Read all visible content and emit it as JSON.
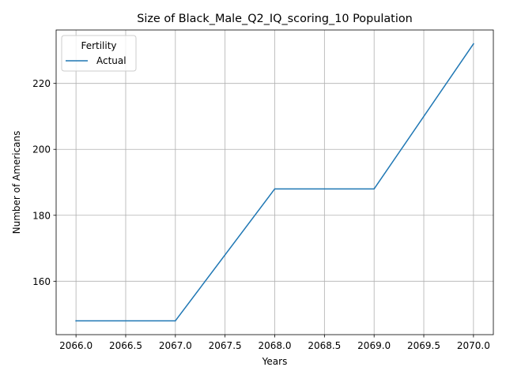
{
  "chart_data": {
    "type": "line",
    "title": "Size of Black_Male_Q2_IQ_scoring_10 Population",
    "xlabel": "Years",
    "ylabel": "Number of Americans",
    "x": [
      2066,
      2067,
      2068,
      2069,
      2070
    ],
    "series": [
      {
        "name": "Actual",
        "color": "#1f77b4",
        "values": [
          148,
          148,
          188,
          188,
          232
        ]
      }
    ],
    "xlim": [
      2065.8,
      2070.2
    ],
    "ylim": [
      143.8,
      236.2
    ],
    "xticks": [
      "2066.0",
      "2066.5",
      "2067.0",
      "2067.5",
      "2068.0",
      "2068.5",
      "2069.0",
      "2069.5",
      "2070.0"
    ],
    "yticks": [
      "160",
      "180",
      "200",
      "220"
    ],
    "grid": true,
    "legend": {
      "title": "Fertility",
      "placement": "top-left"
    }
  }
}
